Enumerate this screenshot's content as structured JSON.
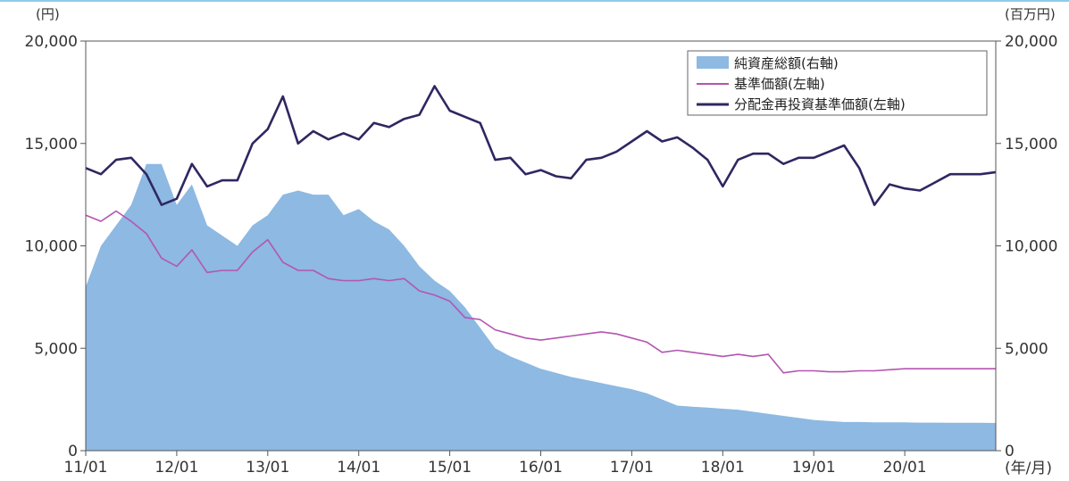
{
  "chart_data": {
    "type": "area",
    "left_unit": "(円)",
    "right_unit": "(百万円)",
    "x_unit": "(年/月)",
    "x_tick_labels": [
      "11/01",
      "12/01",
      "13/01",
      "14/01",
      "15/01",
      "16/01",
      "17/01",
      "18/01",
      "19/01",
      "20/01"
    ],
    "y_left_ticks": [
      "20,000",
      "15,000",
      "10,000",
      "5,000",
      "0"
    ],
    "y_right_ticks": [
      "20,000",
      "15,000",
      "10,000",
      "5,000",
      "0"
    ],
    "y_left_lim": [
      0,
      20000
    ],
    "y_right_lim": [
      0,
      20000
    ],
    "x_range": [
      "11/01",
      "20/12"
    ],
    "grid": false,
    "legend_position": "top-right",
    "x": [
      "11/01",
      "11/03",
      "11/05",
      "11/07",
      "11/09",
      "11/11",
      "12/01",
      "12/03",
      "12/05",
      "12/07",
      "12/09",
      "12/11",
      "13/01",
      "13/03",
      "13/05",
      "13/07",
      "13/09",
      "13/11",
      "14/01",
      "14/03",
      "14/05",
      "14/07",
      "14/09",
      "14/11",
      "15/01",
      "15/03",
      "15/05",
      "15/07",
      "15/09",
      "15/11",
      "16/01",
      "16/03",
      "16/05",
      "16/07",
      "16/09",
      "16/11",
      "17/01",
      "17/03",
      "17/05",
      "17/07",
      "17/09",
      "17/11",
      "18/01",
      "18/03",
      "18/05",
      "18/07",
      "18/09",
      "18/11",
      "19/01",
      "19/03",
      "19/05",
      "19/07",
      "19/09",
      "19/11",
      "20/01",
      "20/03",
      "20/05",
      "20/07",
      "20/09",
      "20/11",
      "20/12"
    ],
    "series": [
      {
        "name": "純資産総額(右軸)",
        "axis": "right",
        "style": "area",
        "color": "#8db9e2",
        "values": [
          8000,
          10000,
          11000,
          12000,
          14000,
          14000,
          12000,
          13000,
          11000,
          10500,
          10000,
          11000,
          11500,
          12500,
          12700,
          12500,
          12500,
          11500,
          11800,
          11200,
          10800,
          10000,
          9000,
          8300,
          7800,
          7000,
          6000,
          5000,
          4600,
          4300,
          4000,
          3800,
          3600,
          3450,
          3300,
          3150,
          3000,
          2800,
          2500,
          2200,
          2150,
          2100,
          2050,
          2000,
          1900,
          1800,
          1700,
          1600,
          1500,
          1450,
          1400,
          1400,
          1380,
          1380,
          1380,
          1370,
          1370,
          1360,
          1360,
          1360,
          1350
        ]
      },
      {
        "name": "基準価額(左軸)",
        "axis": "left",
        "style": "line",
        "color": "#b455b0",
        "values": [
          11500,
          11200,
          11700,
          11200,
          10600,
          9400,
          9000,
          9800,
          8700,
          8800,
          8800,
          9700,
          10300,
          9200,
          8800,
          8800,
          8400,
          8300,
          8300,
          8400,
          8300,
          8400,
          7800,
          7600,
          7300,
          6500,
          6400,
          5900,
          5700,
          5500,
          5400,
          5500,
          5600,
          5700,
          5800,
          5700,
          5500,
          5300,
          4800,
          4900,
          4800,
          4700,
          4600,
          4700,
          4600,
          4700,
          3800,
          3900,
          3900,
          3850,
          3850,
          3900,
          3900,
          3950,
          4000,
          4000,
          4000,
          4000,
          4000,
          4000,
          4000
        ]
      },
      {
        "name": "分配金再投資基準価額(左軸)",
        "axis": "left",
        "style": "line",
        "color": "#2f2760",
        "values": [
          13800,
          13500,
          14200,
          14300,
          13500,
          12000,
          12300,
          14000,
          12900,
          13200,
          13200,
          15000,
          15700,
          17300,
          15000,
          15600,
          15200,
          15500,
          15200,
          16000,
          15800,
          16200,
          16400,
          17800,
          16600,
          16300,
          16000,
          14200,
          14300,
          13500,
          13700,
          13400,
          13300,
          14200,
          14300,
          14600,
          15100,
          15600,
          15100,
          15300,
          14800,
          14200,
          12900,
          14200,
          14500,
          14500,
          14000,
          14300,
          14300,
          14600,
          14900,
          13800,
          12000,
          13000,
          12800,
          12700,
          13100,
          13500,
          13500,
          13500,
          13600
        ]
      }
    ]
  }
}
